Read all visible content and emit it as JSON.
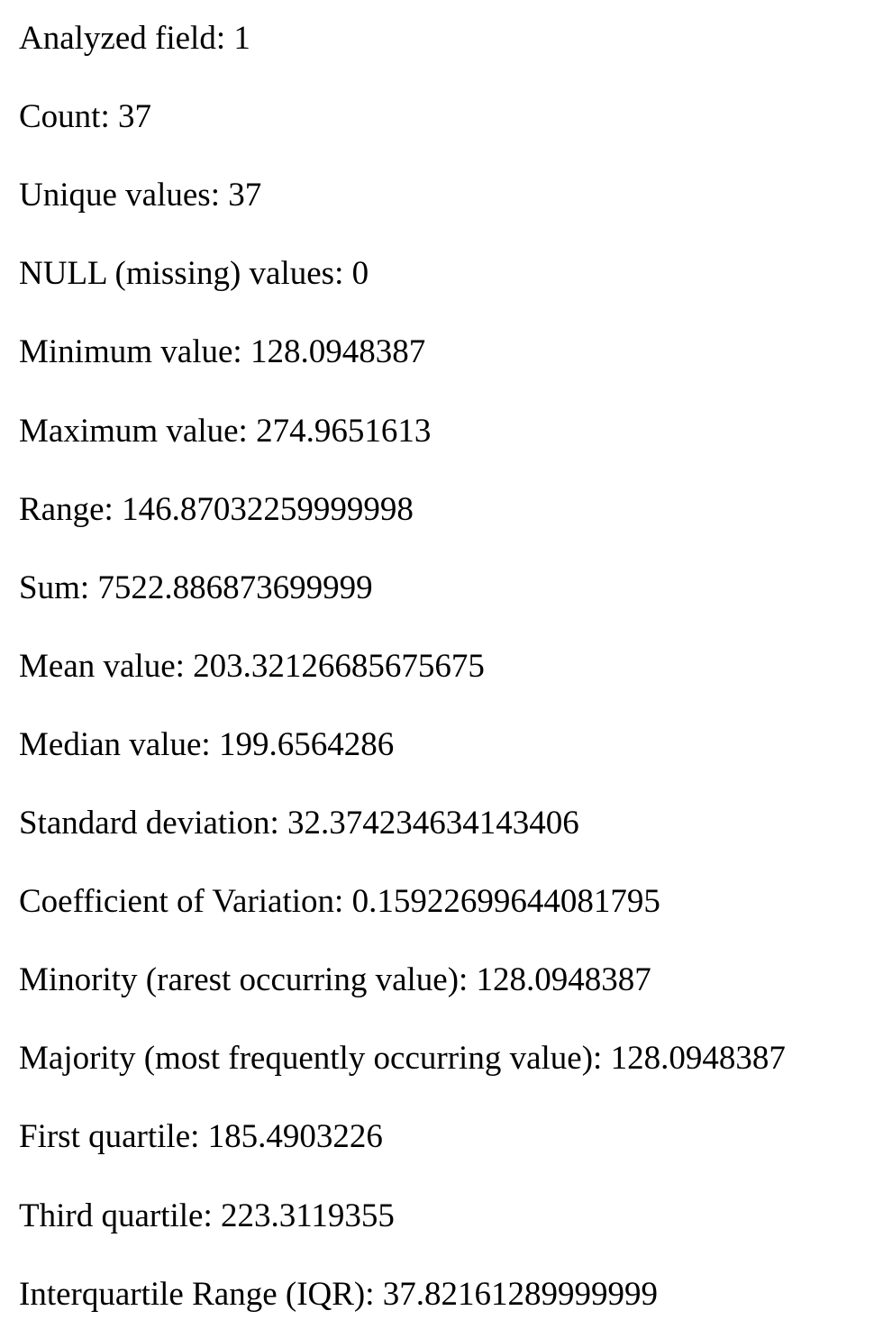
{
  "statistics": [
    {
      "label": "Analyzed field",
      "value": "1"
    },
    {
      "label": "Count",
      "value": "37"
    },
    {
      "label": "Unique values",
      "value": "37"
    },
    {
      "label": "NULL (missing) values",
      "value": "0"
    },
    {
      "label": "Minimum value",
      "value": "128.0948387"
    },
    {
      "label": "Maximum value",
      "value": "274.9651613"
    },
    {
      "label": "Range",
      "value": "146.87032259999998"
    },
    {
      "label": "Sum",
      "value": "7522.886873699999"
    },
    {
      "label": "Mean value",
      "value": "203.32126685675675"
    },
    {
      "label": "Median value",
      "value": "199.6564286"
    },
    {
      "label": "Standard deviation",
      "value": "32.374234634143406"
    },
    {
      "label": "Coefficient of Variation",
      "value": "0.15922699644081795"
    },
    {
      "label": "Minority (rarest occurring value)",
      "value": "128.0948387"
    },
    {
      "label": "Majority (most frequently occurring value)",
      "value": "128.0948387"
    },
    {
      "label": "First quartile",
      "value": "185.4903226"
    },
    {
      "label": "Third quartile",
      "value": "223.3119355"
    },
    {
      "label": "Interquartile Range (IQR)",
      "value": "37.82161289999999"
    }
  ]
}
